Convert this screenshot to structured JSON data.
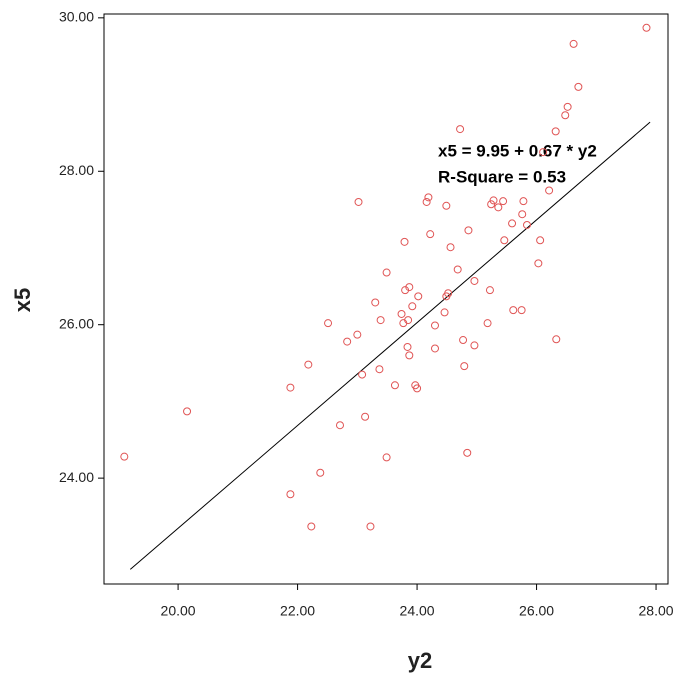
{
  "chart_data": {
    "type": "scatter",
    "x_label": "y2",
    "y_label": "x5",
    "annotations": [
      "x5 = 9.95 + 0.67 * y2",
      "R-Square = 0.53"
    ],
    "xlim": [
      18.76,
      28.2
    ],
    "ylim": [
      22.62,
      30.05
    ],
    "xticks": [
      {
        "value": 20,
        "label": "20.00"
      },
      {
        "value": 22,
        "label": "22.00"
      },
      {
        "value": 24,
        "label": "24.00"
      },
      {
        "value": 26,
        "label": "26.00"
      },
      {
        "value": 28,
        "label": "28.00"
      }
    ],
    "yticks": [
      {
        "value": 24,
        "label": "24.00"
      },
      {
        "value": 26,
        "label": "26.00"
      },
      {
        "value": 28,
        "label": "28.00"
      },
      {
        "value": 30,
        "label": "30.00"
      }
    ],
    "color": "#e05555",
    "line_color": "#000000",
    "x": [
      19.1,
      20.15,
      27.84,
      26.62,
      26.7,
      26.52,
      26.48,
      26.32,
      26.11,
      24.72,
      23.02,
      24.19,
      24.16,
      24.49,
      24.86,
      25.24,
      25.28,
      25.44,
      25.76,
      25.36,
      26.21,
      25.78,
      25.59,
      25.84,
      26.06,
      25.46,
      24.22,
      23.79,
      24.56,
      26.03,
      24.68,
      24.96,
      23.49,
      23.8,
      23.87,
      24.02,
      24.49,
      24.52,
      25.22,
      23.3,
      23.92,
      23.74,
      23.77,
      23.85,
      24.46,
      23.39,
      25.61,
      25.75,
      22.51,
      24.3,
      25.18,
      23.0,
      22.83,
      26.33,
      24.3,
      24.77,
      24.96,
      23.84,
      23.87,
      22.18,
      23.37,
      23.08,
      21.88,
      23.63,
      23.97,
      24.0,
      24.79,
      23.13,
      22.71,
      23.49,
      22.38,
      24.84,
      21.88,
      22.23,
      23.22
    ],
    "values": [
      24.28,
      24.87,
      29.87,
      29.66,
      29.1,
      28.84,
      28.73,
      28.52,
      28.25,
      28.55,
      27.6,
      27.66,
      27.6,
      27.55,
      27.23,
      27.57,
      27.62,
      27.61,
      27.44,
      27.53,
      27.75,
      27.61,
      27.32,
      27.3,
      27.1,
      27.1,
      27.18,
      27.08,
      27.01,
      26.8,
      26.72,
      26.57,
      26.68,
      26.45,
      26.49,
      26.37,
      26.37,
      26.41,
      26.45,
      26.29,
      26.24,
      26.14,
      26.02,
      26.06,
      26.16,
      26.06,
      26.19,
      26.19,
      26.02,
      25.99,
      26.02,
      25.87,
      25.78,
      25.81,
      25.69,
      25.8,
      25.73,
      25.71,
      25.6,
      25.48,
      25.42,
      25.35,
      25.18,
      25.21,
      25.21,
      25.17,
      25.46,
      24.8,
      24.69,
      24.27,
      24.07,
      24.33,
      23.79,
      23.37,
      23.37
    ],
    "fit": {
      "x": [
        19.2,
        27.9
      ],
      "values": [
        22.81,
        28.64
      ]
    }
  }
}
